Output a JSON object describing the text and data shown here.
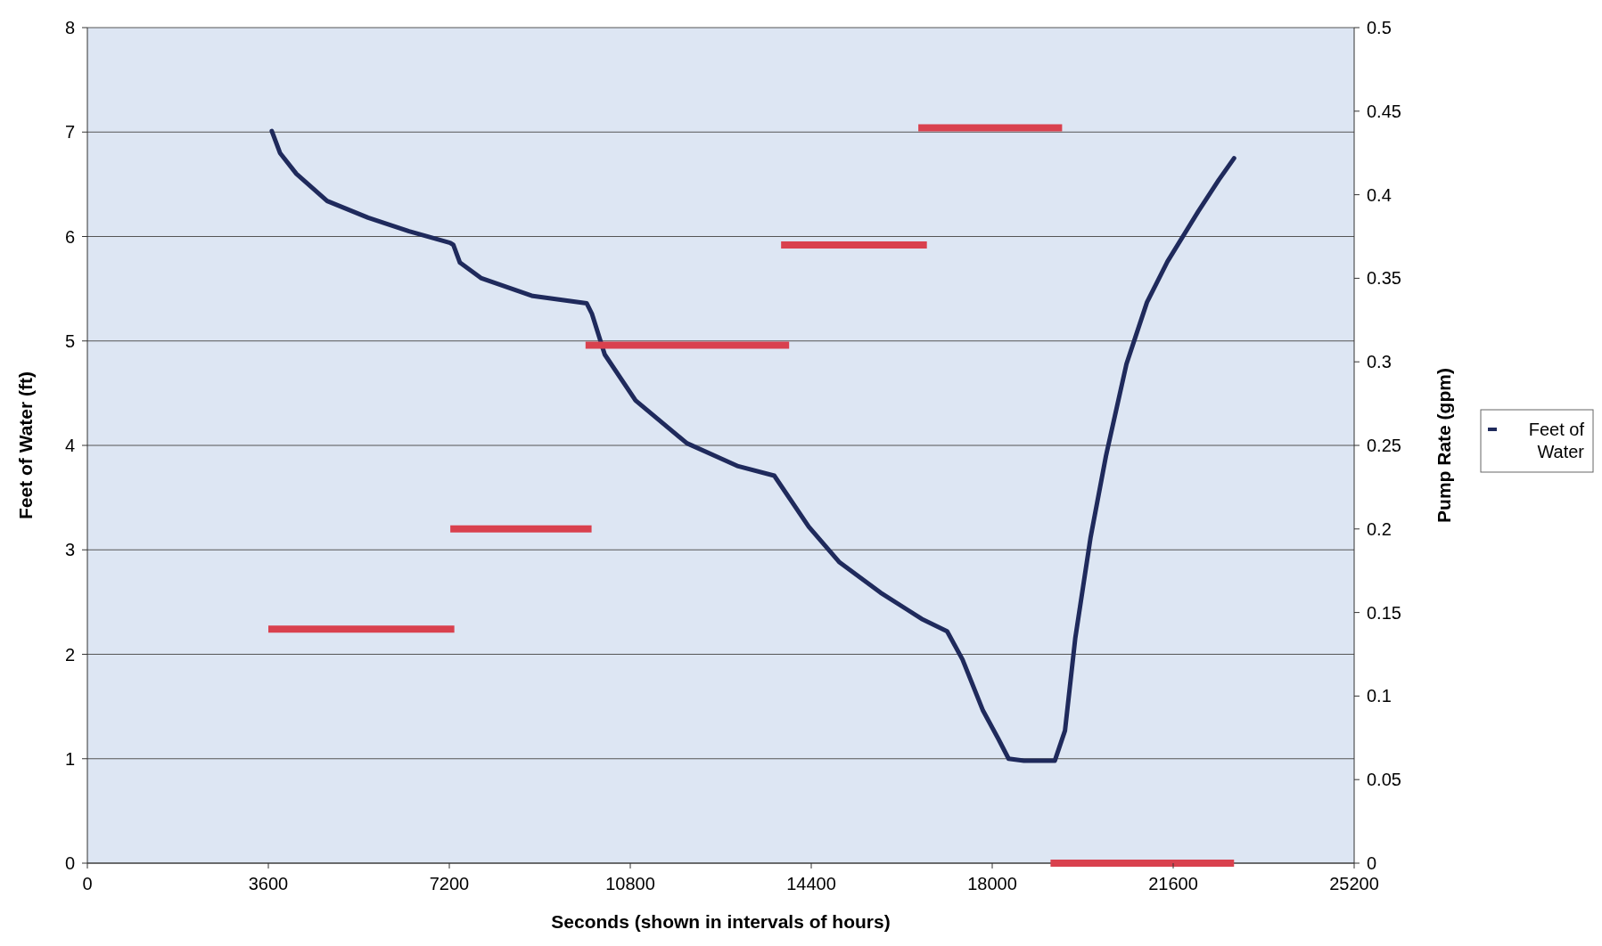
{
  "chart_data": {
    "type": "line",
    "xlabel": "Seconds (shown in intervals of hours)",
    "ylabel": "Feet of Water (ft)",
    "y2label": "Pump Rate (gpm)",
    "xlim": [
      0,
      25200
    ],
    "xticks": [
      0,
      3600,
      7200,
      10800,
      14400,
      18000,
      21600,
      25200
    ],
    "ylim": [
      0,
      8
    ],
    "yticks": [
      0,
      1,
      2,
      3,
      4,
      5,
      6,
      7,
      8
    ],
    "y2lim": [
      0,
      0.5
    ],
    "y2ticks": [
      0,
      0.05,
      0.1,
      0.15,
      0.2,
      0.25,
      0.3,
      0.35,
      0.4,
      0.45,
      0.5
    ],
    "grid": "y",
    "legend": "right",
    "marker": "none",
    "line_style": "solid",
    "series": [
      {
        "name": "Feet of Water",
        "color": "#1f2a5c",
        "x": [
          3669,
          3832,
          4158,
          4770,
          5585,
          6400,
          7216,
          7280,
          7411,
          7840,
          8861,
          9934,
          10037,
          10292,
          10906,
          11927,
          12948,
          13664,
          14351,
          14963,
          15778,
          16594,
          17103,
          17409,
          17817,
          18122,
          18326,
          18632,
          19244,
          19448,
          19651,
          19957,
          20263,
          20671,
          21078,
          21486,
          22098,
          22505,
          22811
        ],
        "values": [
          7.01,
          6.8,
          6.6,
          6.34,
          6.18,
          6.05,
          5.94,
          5.92,
          5.75,
          5.6,
          5.43,
          5.36,
          5.26,
          4.87,
          4.43,
          4.02,
          3.8,
          3.71,
          3.22,
          2.88,
          2.59,
          2.34,
          2.22,
          1.95,
          1.46,
          1.19,
          1.0,
          0.98,
          0.98,
          1.27,
          2.15,
          3.12,
          3.9,
          4.78,
          5.37,
          5.76,
          6.24,
          6.54,
          6.75
        ]
      },
      {
        "color": "#d9414e",
        "axis": "y2",
        "x": [
          3600,
          7300
        ],
        "values": [
          0.14,
          0.14
        ]
      },
      {
        "color": "#d9414e",
        "axis": "y2",
        "x": [
          7220,
          10030
        ],
        "values": [
          0.2,
          0.2
        ]
      },
      {
        "color": "#d9414e",
        "axis": "y2",
        "x": [
          9910,
          13960
        ],
        "values": [
          0.31,
          0.31
        ]
      },
      {
        "color": "#d9414e",
        "axis": "y2",
        "x": [
          13800,
          16700
        ],
        "values": [
          0.37,
          0.37
        ]
      },
      {
        "color": "#d9414e",
        "axis": "y2",
        "x": [
          16530,
          19390
        ],
        "values": [
          0.44,
          0.44
        ]
      },
      {
        "color": "#d9414e",
        "axis": "y2",
        "x": [
          19160,
          22810
        ],
        "values": [
          0,
          0
        ]
      }
    ]
  }
}
